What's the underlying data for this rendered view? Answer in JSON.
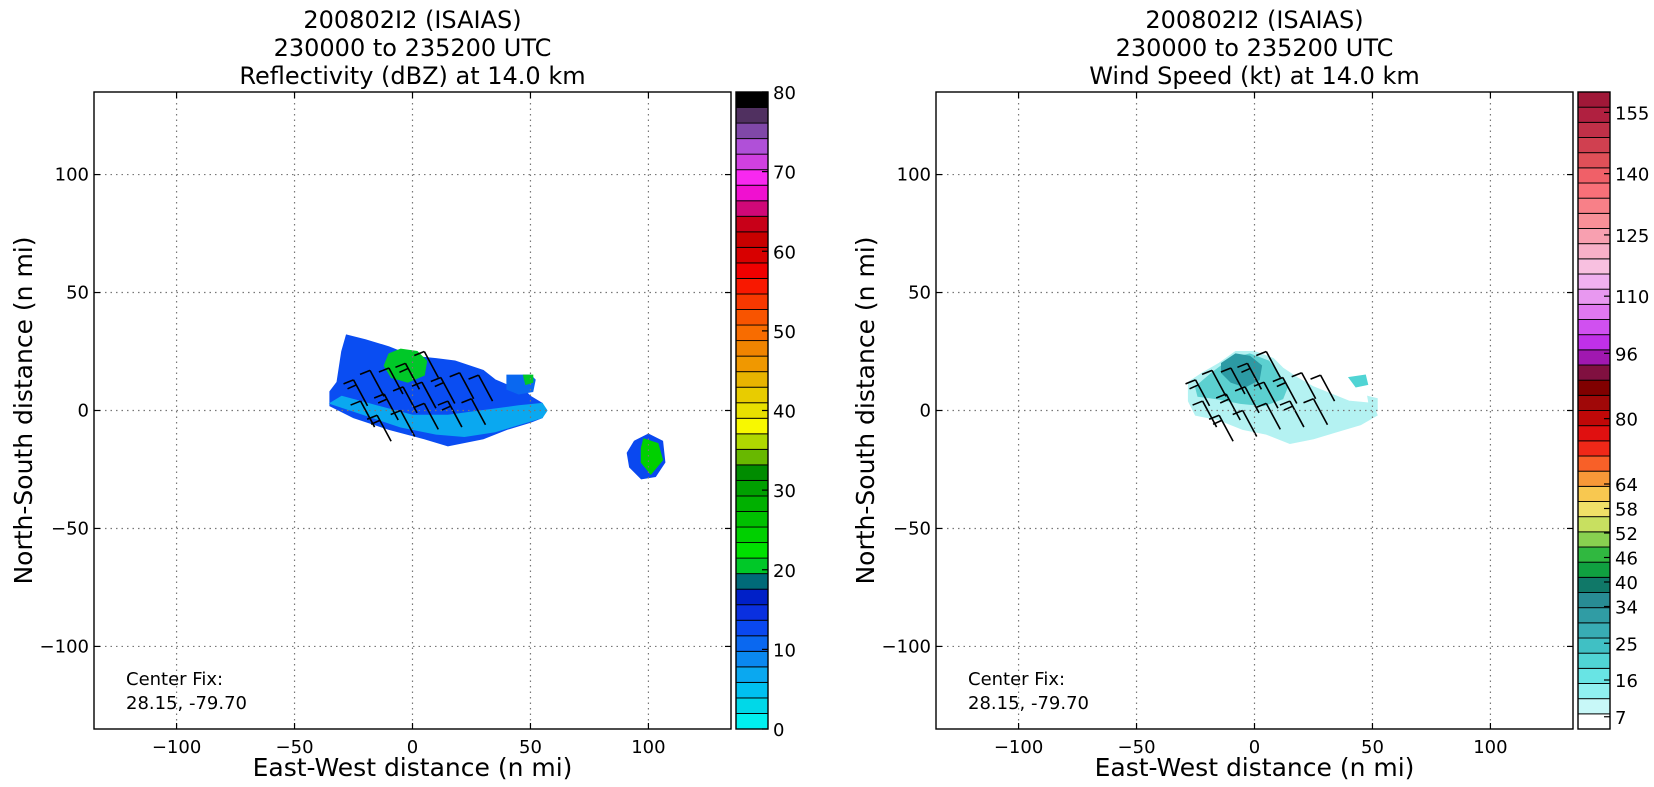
{
  "chart_data": [
    {
      "type": "heatmap",
      "title_lines": [
        "200802I2 (ISAIAS)",
        "230000 to 235200 UTC",
        "Reflectivity (dBZ) at 14.0 km"
      ],
      "xlabel": "East-West distance (n mi)",
      "ylabel": "North-South distance (n mi)",
      "xlim": [
        -135,
        135
      ],
      "ylim": [
        -135,
        135
      ],
      "xticks": [
        -100,
        -50,
        0,
        50,
        100
      ],
      "yticks": [
        -100,
        -50,
        0,
        50,
        100
      ],
      "x_tick_labels": [
        "−100",
        "−50",
        "0",
        "50",
        "100"
      ],
      "y_tick_labels": [
        "−100",
        "−50",
        "0",
        "50",
        "100"
      ],
      "grid": true,
      "annotation_lines": [
        "Center Fix:",
        "28.15, -79.70"
      ],
      "colorbar": {
        "min": 0,
        "max": 80,
        "tick_values": [
          0,
          10,
          20,
          30,
          40,
          50,
          60,
          70,
          80
        ],
        "tick_labels": [
          "0",
          "10",
          "20",
          "30",
          "40",
          "50",
          "60",
          "70",
          "80"
        ],
        "colors": [
          "#00f0f0",
          "#00d8e8",
          "#00c0f0",
          "#0aa8f0",
          "#0a88f0",
          "#0a68f0",
          "#0a48f0",
          "#0a30e0",
          "#0020c8",
          "#006a78",
          "#00c828",
          "#00e000",
          "#00d000",
          "#00c000",
          "#00b000",
          "#00a000",
          "#008c00",
          "#68b800",
          "#b0d800",
          "#f8f800",
          "#e8e000",
          "#e8cc00",
          "#e8b400",
          "#f09800",
          "#f08400",
          "#f86c00",
          "#f85400",
          "#f83800",
          "#f81800",
          "#f00000",
          "#d80000",
          "#c80000",
          "#c80018",
          "#d00878",
          "#f010d0",
          "#f828f0",
          "#d040e0",
          "#b050d8",
          "#8048a8",
          "#503060",
          "#000000"
        ]
      },
      "echo_regions": [
        {
          "name": "main-echo",
          "points": [
            [
              -35,
              8
            ],
            [
              -32,
              12
            ],
            [
              -30,
              25
            ],
            [
              -28,
              32
            ],
            [
              -20,
              30
            ],
            [
              -10,
              27
            ],
            [
              0,
              23
            ],
            [
              10,
              22
            ],
            [
              18,
              21
            ],
            [
              30,
              17
            ],
            [
              35,
              13
            ],
            [
              42,
              10
            ],
            [
              48,
              8
            ],
            [
              50,
              6
            ],
            [
              55,
              3
            ],
            [
              55,
              -3
            ],
            [
              50,
              -5
            ],
            [
              40,
              -8
            ],
            [
              30,
              -12
            ],
            [
              15,
              -15
            ],
            [
              5,
              -12
            ],
            [
              -10,
              -8
            ],
            [
              -25,
              -3
            ],
            [
              -35,
              2
            ]
          ],
          "color": "#0a4df2"
        },
        {
          "name": "main-echo-light",
          "points": [
            [
              -35,
              3
            ],
            [
              -20,
              -2
            ],
            [
              -5,
              -7
            ],
            [
              10,
              -10
            ],
            [
              22,
              -11
            ],
            [
              35,
              -9
            ],
            [
              45,
              -6
            ],
            [
              55,
              -3
            ],
            [
              57,
              0
            ],
            [
              55,
              3
            ],
            [
              45,
              2
            ],
            [
              30,
              0
            ],
            [
              15,
              -2
            ],
            [
              0,
              -2
            ],
            [
              -15,
              2
            ],
            [
              -30,
              6
            ]
          ],
          "color": "#0aa8f0"
        },
        {
          "name": "main-echo-core",
          "points": [
            [
              -10,
              24
            ],
            [
              -5,
              26
            ],
            [
              2,
              25
            ],
            [
              6,
              21
            ],
            [
              5,
              15
            ],
            [
              -2,
              12
            ],
            [
              -9,
              14
            ],
            [
              -12,
              19
            ]
          ],
          "color": "#00c828"
        },
        {
          "name": "east-cell",
          "points": [
            [
              40,
              15
            ],
            [
              50,
              15
            ],
            [
              52,
              13
            ],
            [
              51,
              8
            ],
            [
              45,
              7
            ],
            [
              40,
              9
            ]
          ],
          "color": "#0a68f0"
        },
        {
          "name": "east-cell-core",
          "points": [
            [
              47,
              15
            ],
            [
              51,
              15
            ],
            [
              51,
              12
            ],
            [
              48,
              11
            ]
          ],
          "color": "#00c828"
        },
        {
          "name": "far-east-cell",
          "points": [
            [
              94,
              -13
            ],
            [
              100,
              -10
            ],
            [
              106,
              -13
            ],
            [
              107,
              -22
            ],
            [
              103,
              -28
            ],
            [
              97,
              -29
            ],
            [
              92,
              -24
            ],
            [
              91,
              -18
            ]
          ],
          "color": "#0a48f0"
        },
        {
          "name": "far-east-cell-core",
          "points": [
            [
              98,
              -12
            ],
            [
              104,
              -14
            ],
            [
              106,
              -21
            ],
            [
              101,
              -27
            ],
            [
              97,
              -22
            ],
            [
              97,
              -16
            ]
          ],
          "color": "#00d000"
        }
      ],
      "wind_barbs": [
        [
          -25,
          13
        ],
        [
          -18,
          17
        ],
        [
          -10,
          18
        ],
        [
          -3,
          20
        ],
        [
          5,
          25
        ],
        [
          -22,
          4
        ],
        [
          -12,
          7
        ],
        [
          -4,
          10
        ],
        [
          4,
          12
        ],
        [
          12,
          14
        ],
        [
          20,
          16
        ],
        [
          28,
          15
        ],
        [
          -15,
          -2
        ],
        [
          -5,
          0
        ],
        [
          5,
          3
        ],
        [
          15,
          4
        ],
        [
          25,
          5
        ]
      ]
    },
    {
      "type": "heatmap",
      "title_lines": [
        "200802I2 (ISAIAS)",
        "230000 to 235200 UTC",
        "Wind Speed (kt) at 14.0 km"
      ],
      "xlabel": "East-West distance (n mi)",
      "ylabel": "North-South distance (n mi)",
      "xlim": [
        -135,
        135
      ],
      "ylim": [
        -135,
        135
      ],
      "xticks": [
        -100,
        -50,
        0,
        50,
        100
      ],
      "yticks": [
        -100,
        -50,
        0,
        50,
        100
      ],
      "x_tick_labels": [
        "−100",
        "−50",
        "0",
        "50",
        "100"
      ],
      "y_tick_labels": [
        "−100",
        "−50",
        "0",
        "50",
        "100"
      ],
      "grid": true,
      "annotation_lines": [
        "Center Fix:",
        "28.15, -79.70"
      ],
      "colorbar": {
        "min": 4,
        "max": 160,
        "tick_values": [
          7,
          16,
          25,
          34,
          40,
          46,
          52,
          58,
          64,
          80,
          96,
          110,
          125,
          140,
          155
        ],
        "tick_labels": [
          "7",
          "16",
          "25",
          "34",
          "40",
          "46",
          "52",
          "58",
          "64",
          "80",
          "96",
          "110",
          "125",
          "140",
          "155"
        ],
        "colors": [
          "#ffffff",
          "#c8f8f8",
          "#90f0f0",
          "#68e4e4",
          "#50d4d4",
          "#40c0c4",
          "#38acb4",
          "#309ca4",
          "#288c94",
          "#107868",
          "#10a040",
          "#30b840",
          "#88d050",
          "#c8e060",
          "#f0e068",
          "#f8c850",
          "#f89838",
          "#f86028",
          "#f02818",
          "#e01010",
          "#c00808",
          "#a00808",
          "#800000",
          "#801040",
          "#a018b0",
          "#c030e8",
          "#d050f0",
          "#e078f0",
          "#e898f0",
          "#f0b0f0",
          "#f8c0e0",
          "#f8b0c8",
          "#f8a0b0",
          "#f89098",
          "#f88088",
          "#f87078",
          "#f06068",
          "#e05058",
          "#d04050",
          "#c03048",
          "#b02040",
          "#a01838"
        ]
      },
      "echo_regions": [
        {
          "name": "wind-area",
          "points": [
            [
              -28,
              12
            ],
            [
              -22,
              16
            ],
            [
              -15,
              20
            ],
            [
              -8,
              25
            ],
            [
              0,
              25
            ],
            [
              8,
              22
            ],
            [
              12,
              18
            ],
            [
              18,
              14
            ],
            [
              25,
              10
            ],
            [
              30,
              8
            ],
            [
              40,
              4
            ],
            [
              50,
              3
            ],
            [
              52,
              -2
            ],
            [
              45,
              -6
            ],
            [
              35,
              -9
            ],
            [
              25,
              -12
            ],
            [
              15,
              -14
            ],
            [
              5,
              -10
            ],
            [
              -5,
              -8
            ],
            [
              -15,
              -4
            ],
            [
              -25,
              -2
            ],
            [
              -28,
              4
            ]
          ],
          "color": "#b4f2f2"
        },
        {
          "name": "wind-mid",
          "points": [
            [
              -25,
              10
            ],
            [
              -18,
              16
            ],
            [
              -10,
              22
            ],
            [
              -2,
              24
            ],
            [
              6,
              21
            ],
            [
              10,
              16
            ],
            [
              14,
              10
            ],
            [
              12,
              5
            ],
            [
              4,
              2
            ],
            [
              -6,
              3
            ],
            [
              -16,
              5
            ],
            [
              -24,
              6
            ]
          ],
          "color": "#5cd0d0"
        },
        {
          "name": "wind-core",
          "points": [
            [
              -14,
              20
            ],
            [
              -8,
              24
            ],
            [
              -2,
              23
            ],
            [
              3,
              19
            ],
            [
              2,
              13
            ],
            [
              -4,
              10
            ],
            [
              -10,
              12
            ],
            [
              -14,
              16
            ]
          ],
          "color": "#2c9aa4"
        },
        {
          "name": "wind-speck-east",
          "points": [
            [
              40,
              14
            ],
            [
              47,
              15
            ],
            [
              48,
              11
            ],
            [
              43,
              10
            ]
          ],
          "color": "#50d4d4"
        },
        {
          "name": "wind-speck-east2",
          "points": [
            [
              48,
              6
            ],
            [
              52,
              5
            ],
            [
              52,
              0
            ],
            [
              49,
              0
            ]
          ],
          "color": "#b4f2f2"
        }
      ],
      "wind_barbs": [
        [
          -25,
          13
        ],
        [
          -18,
          17
        ],
        [
          -10,
          18
        ],
        [
          -3,
          20
        ],
        [
          5,
          25
        ],
        [
          -22,
          4
        ],
        [
          -12,
          7
        ],
        [
          -4,
          10
        ],
        [
          4,
          12
        ],
        [
          12,
          14
        ],
        [
          20,
          16
        ],
        [
          28,
          15
        ],
        [
          -15,
          -2
        ],
        [
          -5,
          0
        ],
        [
          5,
          3
        ],
        [
          15,
          4
        ],
        [
          25,
          5
        ]
      ]
    }
  ]
}
